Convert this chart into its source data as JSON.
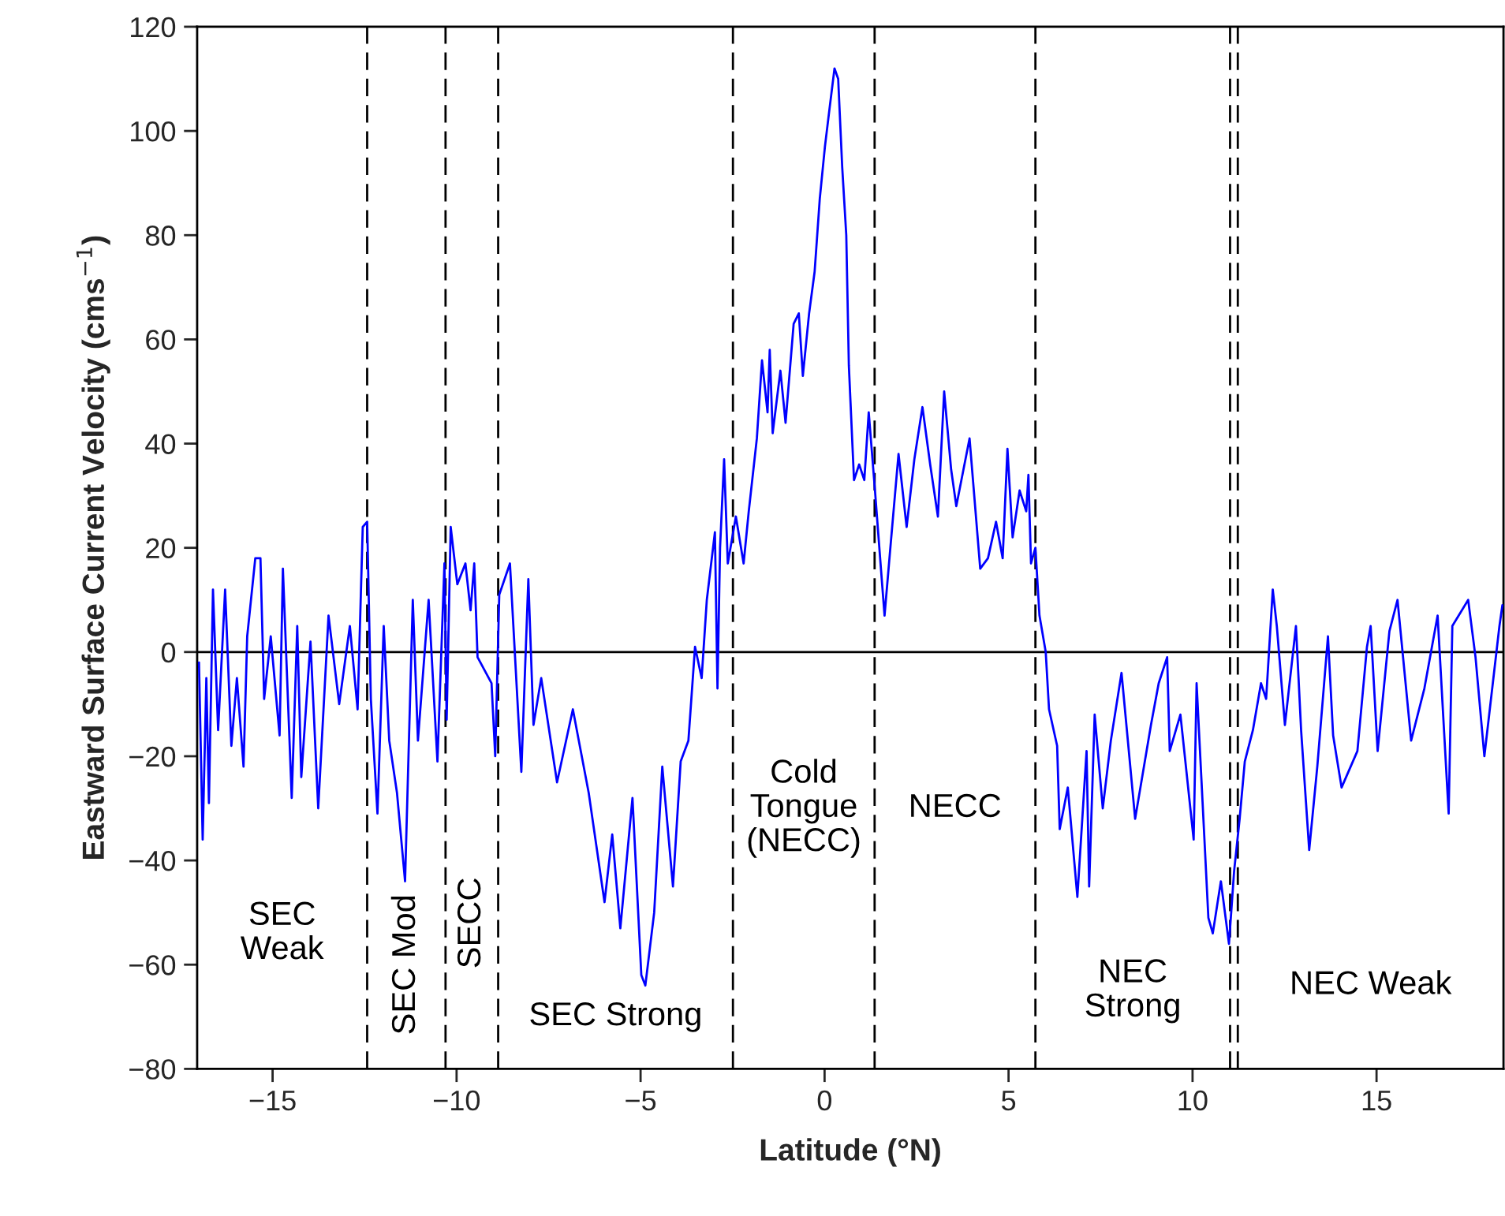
{
  "chart_data": {
    "type": "line",
    "xlabel": "Latitude (°N)",
    "ylabel": "Eastward Surface Current Velocity (cms$^{−1}$)",
    "xlim": [
      -17.05,
      18.45
    ],
    "ylim": [
      -80,
      120
    ],
    "xticks": [
      {
        "value": -15,
        "label": "−15"
      },
      {
        "value": -10,
        "label": "−10"
      },
      {
        "value": -5,
        "label": "−5"
      },
      0,
      5,
      10,
      15
    ],
    "yticks": [
      {
        "value": -80,
        "label": "−80"
      },
      {
        "value": -60,
        "label": "−60"
      },
      {
        "value": -40,
        "label": "−40"
      },
      {
        "value": -20,
        "label": "−20"
      },
      0,
      20,
      40,
      60,
      80,
      100,
      120
    ],
    "grid": false,
    "legend": false,
    "marker": "none",
    "line_style": "solid",
    "series": [
      {
        "color": "#0000ff",
        "x": [
          -17.0,
          -16.9,
          -16.8,
          -16.73,
          -16.62,
          -16.48,
          -16.29,
          -16.12,
          -15.97,
          -15.79,
          -15.69,
          -15.47,
          -15.33,
          -15.23,
          -15.05,
          -14.81,
          -14.72,
          -14.48,
          -14.33,
          -14.22,
          -13.97,
          -13.76,
          -13.48,
          -13.19,
          -12.9,
          -12.69,
          -12.55,
          -12.43,
          -12.33,
          -12.15,
          -11.98,
          -11.83,
          -11.62,
          -11.4,
          -11.19,
          -11.05,
          -10.76,
          -10.52,
          -10.33,
          -10.27,
          -10.16,
          -9.98,
          -9.76,
          -9.62,
          -9.52,
          -9.43,
          -9.05,
          -8.95,
          -8.84,
          -8.55,
          -8.24,
          -8.05,
          -7.91,
          -7.7,
          -7.27,
          -6.84,
          -6.41,
          -5.98,
          -5.77,
          -5.55,
          -5.22,
          -4.98,
          -4.87,
          -4.63,
          -4.41,
          -4.12,
          -3.91,
          -3.7,
          -3.52,
          -3.34,
          -3.2,
          -2.98,
          -2.91,
          -2.84,
          -2.73,
          -2.63,
          -2.41,
          -2.2,
          -2.06,
          -1.84,
          -1.7,
          -1.55,
          -1.49,
          -1.41,
          -1.2,
          -1.06,
          -0.84,
          -0.7,
          -0.59,
          -0.42,
          -0.27,
          -0.13,
          0.01,
          0.13,
          0.27,
          0.37,
          0.48,
          0.59,
          0.66,
          0.8,
          0.94,
          1.08,
          1.2,
          1.37,
          1.51,
          1.63,
          1.8,
          2.01,
          2.23,
          2.44,
          2.66,
          2.87,
          3.08,
          3.25,
          3.44,
          3.58,
          3.94,
          4.23,
          4.44,
          4.66,
          4.84,
          4.97,
          5.11,
          5.3,
          5.48,
          5.54,
          5.61,
          5.73,
          5.84,
          6.01,
          6.1,
          6.32,
          6.39,
          6.61,
          6.87,
          7.12,
          7.19,
          7.34,
          7.56,
          7.78,
          8.07,
          8.44,
          8.87,
          9.08,
          9.31,
          9.38,
          9.67,
          10.03,
          10.11,
          10.43,
          10.55,
          10.77,
          10.99,
          11.13,
          11.28,
          11.42,
          11.64,
          11.86,
          12.0,
          12.18,
          12.29,
          12.51,
          12.81,
          12.95,
          13.17,
          13.39,
          13.68,
          13.82,
          14.05,
          14.48,
          14.74,
          14.84,
          15.03,
          15.35,
          15.57,
          15.94,
          16.3,
          16.66,
          16.96,
          17.06,
          17.49,
          17.69,
          17.93,
          18.34,
          18.42
        ],
        "values": [
          -2,
          -36,
          -5,
          -29,
          12,
          -15,
          12,
          -18,
          -5,
          -22,
          3,
          18,
          18,
          -9,
          3,
          -16,
          16,
          -28,
          5,
          -24,
          2,
          -30,
          7,
          -10,
          5,
          -11,
          24,
          25,
          -9,
          -31,
          5,
          -17,
          -27,
          -44,
          10,
          -17,
          10,
          -21,
          17,
          -13,
          24,
          13,
          17,
          8,
          17,
          -1,
          -6,
          -20,
          11,
          17,
          -23,
          14,
          -14,
          -5,
          -25,
          -11,
          -27,
          -48,
          -35,
          -53,
          -28,
          -62,
          -64,
          -50,
          -22,
          -45,
          -21,
          -17,
          1,
          -5,
          10,
          23,
          -7,
          20,
          37,
          17,
          26,
          17,
          27,
          41,
          56,
          46,
          58,
          42,
          54,
          44,
          63,
          65,
          53,
          65,
          73,
          87,
          97,
          104,
          112,
          110,
          93,
          80,
          55,
          33,
          36,
          33,
          46,
          31,
          18,
          7,
          21,
          38,
          24,
          37,
          47,
          36,
          26,
          50,
          35,
          28,
          41,
          16,
          18,
          25,
          18,
          39,
          22,
          31,
          27,
          34,
          17,
          20,
          7,
          0,
          -11,
          -18,
          -34,
          -26,
          -47,
          -19,
          -45,
          -12,
          -30,
          -17,
          -4,
          -32,
          -14,
          -6,
          -1,
          -19,
          -12,
          -36,
          -6,
          -51,
          -54,
          -44,
          -56,
          -42,
          -32,
          -21,
          -15,
          -6,
          -9,
          12,
          5,
          -14,
          5,
          -15,
          -38,
          -22,
          3,
          -16,
          -26,
          -19,
          1,
          5,
          -19,
          4,
          10,
          -17,
          -7,
          7,
          -31,
          5,
          10,
          -1,
          -20,
          5,
          9
        ]
      }
    ],
    "ref_lines": [
      {
        "axis": "y",
        "value": 0,
        "color": "#000000",
        "line_style": "solid"
      },
      {
        "axis": "x",
        "value": -12.43,
        "color": "#000000",
        "line_style": "dashed"
      },
      {
        "axis": "x",
        "value": -10.3,
        "color": "#000000",
        "line_style": "dashed"
      },
      {
        "axis": "x",
        "value": -8.87,
        "color": "#000000",
        "line_style": "dashed"
      },
      {
        "axis": "x",
        "value": -2.49,
        "color": "#000000",
        "line_style": "dashed"
      },
      {
        "axis": "x",
        "value": 1.36,
        "color": "#000000",
        "line_style": "dashed"
      },
      {
        "axis": "x",
        "value": 5.73,
        "color": "#000000",
        "line_style": "dashed"
      },
      {
        "axis": "x",
        "value": 11.02,
        "color": "#000000",
        "line_style": "dashed"
      },
      {
        "axis": "x",
        "value": 11.23,
        "color": "#000000",
        "line_style": "dashed"
      }
    ],
    "annotations": [
      "SEC\nWeak",
      "SEC Mod",
      "SECC",
      "SEC Strong",
      "Cold\nTongue\n(NECC)",
      "NECC",
      "NEC\nStrong",
      "NEC Weak"
    ]
  }
}
